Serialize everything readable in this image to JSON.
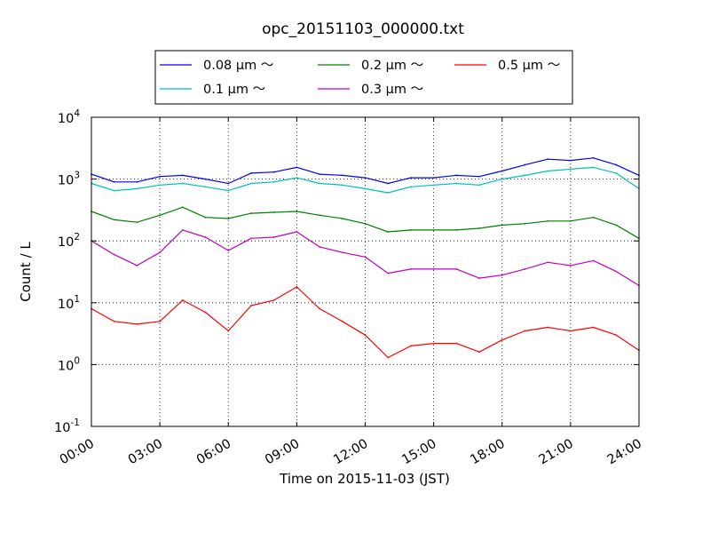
{
  "chart_data": {
    "type": "line",
    "title": "opc_20151103_000000.txt",
    "xlabel": "Time on 2015-11-03 (JST)",
    "ylabel": "Count / L",
    "yscale": "log",
    "xlim": [
      "00:00",
      "24:00"
    ],
    "ylim": [
      0.1,
      10000
    ],
    "grid": true,
    "legend_position": "top-center",
    "x_ticks": [
      "00:00",
      "03:00",
      "06:00",
      "09:00",
      "12:00",
      "15:00",
      "18:00",
      "21:00",
      "24:00"
    ],
    "y_ticks": [
      {
        "base": "10",
        "exp": "-1"
      },
      {
        "base": "10",
        "exp": "0"
      },
      {
        "base": "10",
        "exp": "1"
      },
      {
        "base": "10",
        "exp": "2"
      },
      {
        "base": "10",
        "exp": "3"
      },
      {
        "base": "10",
        "exp": "4"
      }
    ],
    "x": [
      "00:00",
      "01:00",
      "02:00",
      "03:00",
      "04:00",
      "05:00",
      "06:00",
      "07:00",
      "08:00",
      "09:00",
      "10:00",
      "11:00",
      "12:00",
      "13:00",
      "14:00",
      "15:00",
      "16:00",
      "17:00",
      "18:00",
      "19:00",
      "20:00",
      "21:00",
      "22:00",
      "23:00",
      "24:00"
    ],
    "series": [
      {
        "name": "0.08 μm ～",
        "color": "#0000ff",
        "values": [
          1200,
          900,
          900,
          1100,
          1150,
          1000,
          850,
          1250,
          1300,
          1550,
          1200,
          1150,
          1050,
          850,
          1050,
          1050,
          1150,
          1100,
          1350,
          1700,
          2100,
          2000,
          2200,
          1700,
          1150
        ]
      },
      {
        "name": "0.1 μm ～",
        "color": "#00bfbf",
        "values": [
          850,
          650,
          700,
          800,
          850,
          750,
          650,
          850,
          900,
          1050,
          850,
          800,
          700,
          600,
          750,
          800,
          850,
          800,
          1000,
          1150,
          1350,
          1450,
          1550,
          1250,
          700
        ]
      },
      {
        "name": "0.2 μm ～",
        "color": "#008000",
        "values": [
          300,
          220,
          200,
          260,
          350,
          240,
          230,
          280,
          290,
          300,
          260,
          230,
          190,
          140,
          150,
          150,
          150,
          160,
          180,
          190,
          210,
          210,
          240,
          180,
          110
        ]
      },
      {
        "name": "0.3 μm ～",
        "color": "#bf00bf",
        "values": [
          100,
          60,
          40,
          65,
          150,
          115,
          70,
          110,
          115,
          140,
          80,
          65,
          55,
          30,
          35,
          35,
          35,
          25,
          28,
          35,
          45,
          40,
          48,
          32,
          19
        ]
      },
      {
        "name": "0.5 μm ～",
        "color": "#ff0000",
        "values": [
          8,
          5,
          4.5,
          5,
          11,
          7,
          3.5,
          9,
          11,
          18,
          8,
          5,
          3,
          1.3,
          2,
          2.2,
          2.2,
          1.6,
          2.5,
          3.5,
          4,
          3.5,
          4,
          3,
          1.7
        ]
      }
    ]
  }
}
